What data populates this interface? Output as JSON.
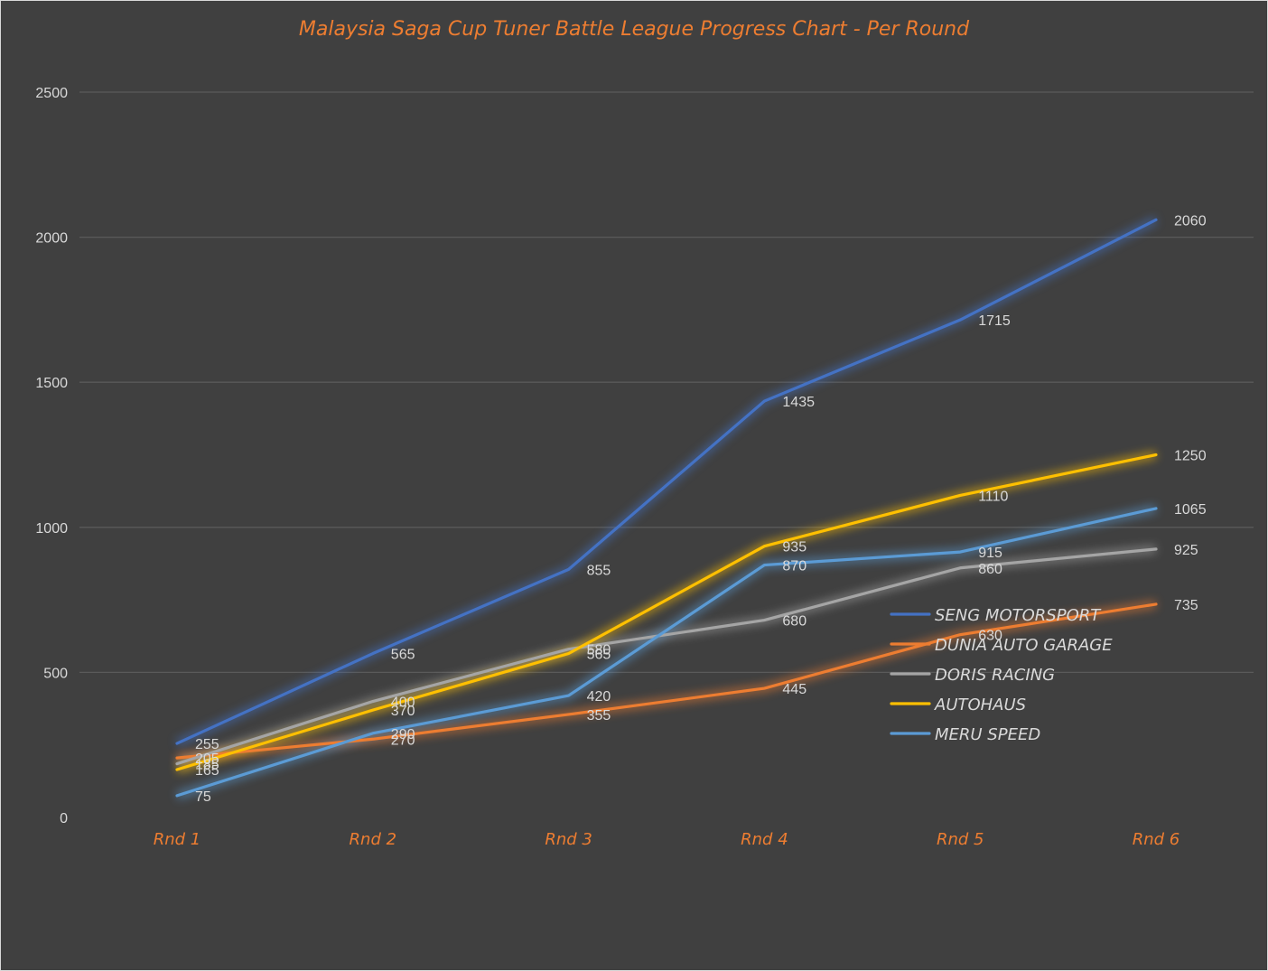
{
  "chart_data": {
    "type": "line",
    "title": "Malaysia Saga Cup Tuner Battle League Progress Chart - Per Round",
    "xlabel": "",
    "ylabel": "",
    "categories": [
      "Rnd 1",
      "Rnd 2",
      "Rnd 3",
      "Rnd 4",
      "Rnd 5",
      "Rnd 6"
    ],
    "ylim": [
      0,
      2500
    ],
    "yticks": [
      0,
      500,
      1000,
      1500,
      2000,
      2500
    ],
    "grid": true,
    "legend_position": "right",
    "series": [
      {
        "name": "SENG MOTORSPORT",
        "color": "#4472c4",
        "values": [
          255,
          565,
          855,
          1435,
          1715,
          2060
        ]
      },
      {
        "name": "DUNIA AUTO GARAGE",
        "color": "#ed7d31",
        "values": [
          205,
          270,
          355,
          445,
          630,
          735
        ]
      },
      {
        "name": "DORIS RACING",
        "color": "#a5a5a5",
        "values": [
          185,
          400,
          580,
          680,
          860,
          925
        ]
      },
      {
        "name": "AUTOHAUS",
        "color": "#ffc000",
        "values": [
          165,
          370,
          565,
          935,
          1110,
          1250
        ]
      },
      {
        "name": "MERU SPEED",
        "color": "#5b9bd5",
        "values": [
          75,
          290,
          420,
          870,
          915,
          1065
        ]
      }
    ]
  }
}
